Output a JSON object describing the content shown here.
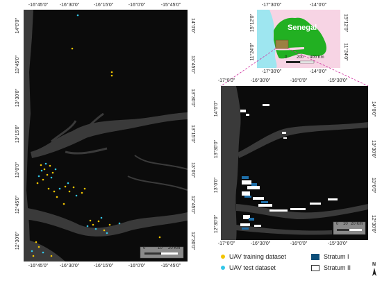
{
  "main_map": {
    "top_ticks": [
      "-16°45'0\"",
      "-16°30'0\"",
      "-16°15'0\"",
      "-16°0'0\"",
      "-15°45'0\""
    ],
    "bottom_ticks": [
      "-16°45'0\"",
      "-16°30'0\"",
      "-16°15'0\"",
      "-16°0'0\"",
      "-15°45'0\""
    ],
    "left_ticks": [
      "14°0'0\"",
      "13°45'0\"",
      "13°30'0\"",
      "13°15'0\"",
      "13°0'0\"",
      "12°45'0\"",
      "12°30'0\""
    ],
    "right_ticks": [
      "14°0'0\"",
      "13°45'0\"",
      "13°30'0\"",
      "13°15'0\"",
      "13°0'0\"",
      "12°45'0\"",
      "12°30'0\""
    ],
    "scale": {
      "label0": "0",
      "label10": "10",
      "label20": "20 Km"
    }
  },
  "inset_map": {
    "top_ticks": [
      "-17°30'0\"",
      "-14°0'0\""
    ],
    "bottom_ticks": [
      "-17°30'0\"",
      "-14°0'0\""
    ],
    "left_ticks": [
      "15°12'0\"",
      "11°24'0\""
    ],
    "right_ticks": [
      "15°12'0\"",
      "11°24'0\""
    ],
    "country_label": "Senegal",
    "scale": {
      "label0": "0",
      "label200": "200",
      "label400": "400 Km"
    },
    "colors": {
      "land": "#22b022",
      "sea": "#9ee6f0",
      "background": "#f7d4e4",
      "study_area": "#b07848"
    }
  },
  "right_map": {
    "top_ticks": [
      "-17°0'0\"",
      "-16°30'0\"",
      "-16°0'0\"",
      "-15°30'0\""
    ],
    "bottom_ticks": [
      "-17°0'0\"",
      "-16°30'0\"",
      "-16°0'0\"",
      "-15°30'0\""
    ],
    "left_ticks": [
      "14°0'0\"",
      "13°30'0\"",
      "13°0'0\"",
      "12°30'0\""
    ],
    "right_ticks": [
      "14°0'0\"",
      "13°30'0\"",
      "13°0'0\"",
      "12°30'0\""
    ],
    "scale": {
      "label0": "0",
      "label10": "10",
      "label20": "20 Km"
    }
  },
  "legend": {
    "training": "UAV training dataset",
    "test": "UAV test dataset",
    "stratum1": "Stratum I",
    "stratum2": "Stratum II",
    "colors": {
      "training": "#f2c400",
      "test": "#33c6e8",
      "stratum1": "#0d4f7a",
      "stratum2": "#ffffff"
    }
  },
  "north_arrow": {
    "label": "N"
  }
}
